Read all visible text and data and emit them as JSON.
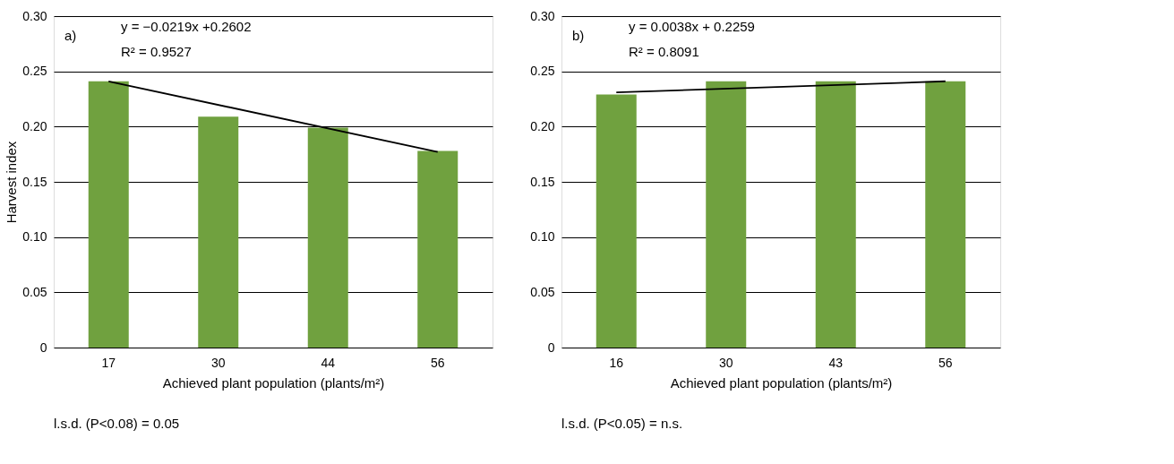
{
  "chart_data": [
    {
      "type": "bar",
      "categories": [
        "17",
        "30",
        "44",
        "56"
      ],
      "xlabel": "Achieved plant population (plants/m²)",
      "ylabel": "Harvest index",
      "series": [
        {
          "color": "#70a13f",
          "values": [
            0.241,
            0.209,
            0.199,
            0.178
          ]
        },
        {
          "type": "line",
          "color": "#000000",
          "values": [
            0.241,
            null,
            null,
            0.177
          ]
        }
      ],
      "ylim": [
        0,
        0.3
      ],
      "yticks": [
        0,
        {
          "value": 0.05,
          "label": "0.05"
        },
        {
          "value": 0.1,
          "label": "0.10"
        },
        {
          "value": 0.15,
          "label": "0.15"
        },
        {
          "value": 0.2,
          "label": "0.20"
        },
        {
          "value": 0.25,
          "label": "0.25"
        },
        {
          "value": 0.3,
          "label": "0.30"
        }
      ],
      "grid": "y",
      "annotations": [
        "a)",
        "y = −0.0219x +0.2602",
        "R² = 0.9527",
        "l.s.d. (P<0.08) = 0.05"
      ]
    },
    {
      "type": "bar",
      "categories": [
        "16",
        "30",
        "43",
        "56"
      ],
      "xlabel": "Achieved plant population (plants/m²)",
      "series": [
        {
          "color": "#70a13f",
          "values": [
            0.229,
            0.241,
            0.241,
            0.241
          ]
        },
        {
          "type": "line",
          "color": "#000000",
          "values": [
            0.231,
            null,
            null,
            0.241
          ]
        }
      ],
      "ylim": [
        0,
        0.3
      ],
      "yticks": [
        0,
        {
          "value": 0.05,
          "label": "0.05"
        },
        {
          "value": 0.1,
          "label": "0.10"
        },
        {
          "value": 0.15,
          "label": "0.15"
        },
        {
          "value": 0.2,
          "label": "0.20"
        },
        {
          "value": 0.25,
          "label": "0.25"
        },
        {
          "value": 0.3,
          "label": "0.30"
        }
      ],
      "grid": "y",
      "annotations": [
        "b)",
        "y = 0.0038x + 0.2259",
        "R² = 0.8091",
        "l.s.d. (P<0.05) = n.s."
      ]
    }
  ]
}
